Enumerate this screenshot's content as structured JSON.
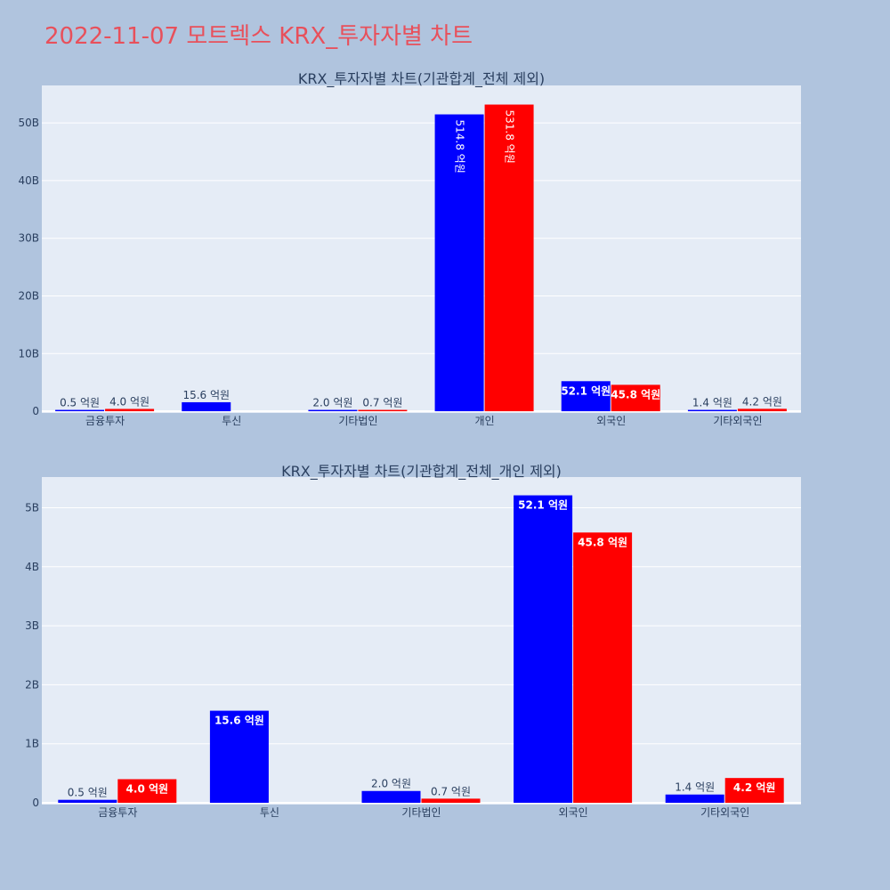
{
  "page": {
    "title": "2022-11-07 모트렉스 KRX_투자자별 차트"
  },
  "colors": {
    "series_a": "#0000ff",
    "series_b": "#ff0000",
    "plot_bg": "#e5ecf6",
    "page_bg": "#b0c4de",
    "title": "#e8505b"
  },
  "chart_data": [
    {
      "type": "bar",
      "title": "KRX_투자자별 차트(기관합계_전체 제외)",
      "categories": [
        "금융투자",
        "투신",
        "기타법인",
        "개인",
        "외국인",
        "기타외국인"
      ],
      "series": [
        {
          "color": "#0000ff",
          "values": [
            0.05,
            1.56,
            0.2,
            51.48,
            5.21,
            0.14
          ],
          "labels": [
            "0.5 억원",
            "15.6 억원",
            "2.0 억원",
            "514.8 억원",
            "52.1 억원",
            "1.4 억원"
          ]
        },
        {
          "color": "#ff0000",
          "values": [
            0.4,
            null,
            0.07,
            53.18,
            4.58,
            0.42
          ],
          "labels": [
            "4.0 억원",
            "",
            "0.7 억원",
            "531.8 억원",
            "45.8 억원",
            "4.2 억원"
          ]
        }
      ],
      "yunit": "B",
      "yticks": [
        0,
        10,
        20,
        30,
        40,
        50
      ],
      "ytick_labels": [
        "0",
        "10B",
        "20B",
        "30B",
        "40B",
        "50B"
      ],
      "ylim": [
        -0.3,
        56.5
      ],
      "grid": true
    },
    {
      "type": "bar",
      "title": "KRX_투자자별 차트(기관합계_전체_개인 제외)",
      "categories": [
        "금융투자",
        "투신",
        "기타법인",
        "외국인",
        "기타외국인"
      ],
      "series": [
        {
          "color": "#0000ff",
          "values": [
            0.05,
            1.56,
            0.2,
            5.21,
            0.14
          ],
          "labels": [
            "0.5 억원",
            "15.6 억원",
            "2.0 억원",
            "52.1 억원",
            "1.4 억원"
          ]
        },
        {
          "color": "#ff0000",
          "values": [
            0.4,
            null,
            0.07,
            4.58,
            0.42
          ],
          "labels": [
            "4.0 억원",
            "",
            "0.7 억원",
            "45.8 억원",
            "4.2 억원"
          ]
        }
      ],
      "yunit": "B",
      "yticks": [
        0,
        1,
        2,
        3,
        4,
        5
      ],
      "ytick_labels": [
        "0",
        "1B",
        "2B",
        "3B",
        "4B",
        "5B"
      ],
      "ylim": [
        -0.03,
        5.52
      ],
      "grid": true
    }
  ]
}
